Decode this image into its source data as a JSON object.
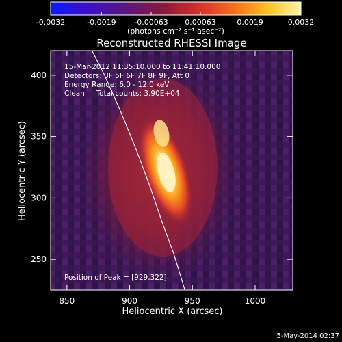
{
  "chart_data": {
    "type": "heatmap",
    "title": "Reconstructed RHESSI Image",
    "xlabel": "Heliocentric X (arcsec)",
    "ylabel": "Heliocentric Y (arcsec)",
    "xlim": [
      837,
      1030
    ],
    "ylim": [
      225,
      420
    ],
    "x_ticks": [
      850,
      900,
      950,
      1000
    ],
    "y_ticks": [
      250,
      300,
      350,
      400
    ],
    "colorbar": {
      "ticks": [
        "-0.0032",
        "-0.0019",
        "-0.00063",
        "0.00063",
        "0.0019",
        "0.0032"
      ],
      "values": [
        -0.0032,
        -0.0019,
        -0.00063,
        0.00063,
        0.0019,
        0.0032
      ],
      "units": "(photons cm⁻² s⁻¹ asec⁻²)",
      "colors": [
        "#0b18ff",
        "#3a10c8",
        "#5a167e",
        "#8a1a3a",
        "#d8322a",
        "#f7781a",
        "#fcc828",
        "#fff5a8"
      ]
    },
    "annotations": [
      "15-Mar-2012 11:35:10.000 to 11:41:10.000",
      "Detectors: 3F 5F 6F 7F 8F 9F, Att 0",
      "Energy Range: 6.0 - 12.0 keV",
      "Clean     Total counts: 3.90E+04"
    ],
    "peak_label": "Position of Peak = [929,322]",
    "peak": [
      929,
      322
    ],
    "limb_curve": [
      [
        870,
        420
      ],
      [
        880,
        400
      ],
      [
        893,
        370
      ],
      [
        905,
        340
      ],
      [
        916,
        310
      ],
      [
        926,
        280
      ],
      [
        935,
        255
      ],
      [
        944,
        225
      ]
    ],
    "footer_date": "5-May-2014 02:37"
  }
}
